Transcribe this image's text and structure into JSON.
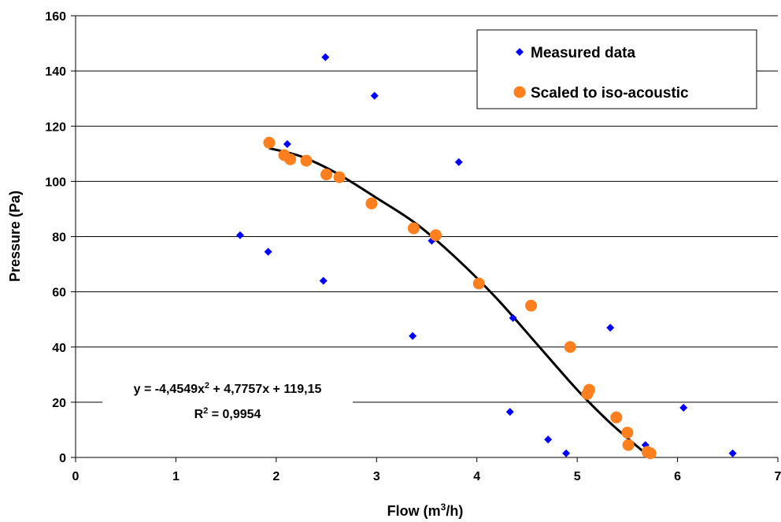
{
  "chart_data": {
    "type": "scatter",
    "xlabel_main": "Flow (m",
    "xlabel_sup": "3",
    "xlabel_end": "/h)",
    "ylabel": "Pressure (Pa)",
    "xlim": [
      0,
      7
    ],
    "ylim": [
      0,
      160
    ],
    "x_ticks": [
      "0",
      "1",
      "2",
      "3",
      "4",
      "5",
      "6",
      "7"
    ],
    "y_ticks": [
      "0",
      "20",
      "40",
      "60",
      "80",
      "100",
      "120",
      "140",
      "160"
    ],
    "grid": "horizontal",
    "legend_position": "top-right",
    "series": [
      {
        "name": "Measured data",
        "marker": "diamond",
        "color": "#0000ff",
        "points": [
          [
            1.64,
            80.5
          ],
          [
            1.92,
            74.5
          ],
          [
            2.11,
            113.5
          ],
          [
            2.47,
            64.0
          ],
          [
            2.49,
            145.0
          ],
          [
            2.98,
            131.0
          ],
          [
            3.36,
            44.0
          ],
          [
            3.55,
            78.5
          ],
          [
            3.82,
            107.0
          ],
          [
            4.33,
            16.5
          ],
          [
            4.36,
            50.5
          ],
          [
            4.71,
            6.5
          ],
          [
            4.89,
            1.5
          ],
          [
            5.08,
            23.5
          ],
          [
            5.33,
            47.0
          ],
          [
            5.68,
            4.5
          ],
          [
            6.06,
            18.0
          ],
          [
            6.55,
            1.5
          ]
        ]
      },
      {
        "name": "Scaled to iso-acoustic",
        "marker": "circle",
        "color": "#ff7f1f",
        "points": [
          [
            1.93,
            114.0
          ],
          [
            2.08,
            109.5
          ],
          [
            2.14,
            108.0
          ],
          [
            2.3,
            107.5
          ],
          [
            2.5,
            102.5
          ],
          [
            2.63,
            101.5
          ],
          [
            2.95,
            92.0
          ],
          [
            3.37,
            83.0
          ],
          [
            3.59,
            80.5
          ],
          [
            4.02,
            63.0
          ],
          [
            4.54,
            55.0
          ],
          [
            4.93,
            40.0
          ],
          [
            5.1,
            23.0
          ],
          [
            5.12,
            24.5
          ],
          [
            5.39,
            14.5
          ],
          [
            5.5,
            9.0
          ],
          [
            5.51,
            4.5
          ],
          [
            5.7,
            2.0
          ],
          [
            5.73,
            1.5
          ]
        ]
      }
    ],
    "trendline": {
      "color": "#000000",
      "x_range": [
        1.93,
        5.73
      ],
      "points": [
        [
          1.93,
          112.0
        ],
        [
          2.25,
          109.0
        ],
        [
          2.6,
          103.0
        ],
        [
          3.0,
          94.0
        ],
        [
          3.4,
          84.5
        ],
        [
          3.8,
          72.0
        ],
        [
          4.2,
          57.5
        ],
        [
          4.6,
          41.0
        ],
        [
          5.0,
          24.5
        ],
        [
          5.3,
          13.5
        ],
        [
          5.55,
          5.5
        ],
        [
          5.73,
          0.0
        ]
      ]
    },
    "equation_line1_pre": "y = -4,4549x",
    "equation_line1_sup": "2",
    "equation_line1_post": " + 4,7757x + 119,15",
    "equation_line2_pre": "R",
    "equation_line2_sup": "2",
    "equation_line2_post": " = 0,9954"
  }
}
